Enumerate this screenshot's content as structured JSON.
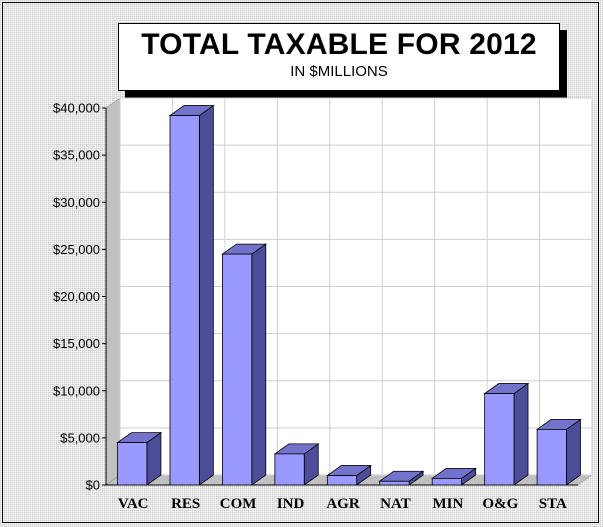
{
  "chart_data": {
    "type": "bar",
    "title": "TOTAL TAXABLE FOR 2012",
    "subtitle": "IN $MILLIONS",
    "categories": [
      "VAC",
      "RES",
      "COM",
      "IND",
      "AGR",
      "NAT",
      "MIN",
      "O&G",
      "STA"
    ],
    "values": [
      4500,
      39200,
      24500,
      3300,
      1000,
      400,
      700,
      9700,
      5900
    ],
    "ylim": [
      0,
      40000
    ],
    "yticks": [
      0,
      5000,
      10000,
      15000,
      20000,
      25000,
      30000,
      35000,
      40000
    ],
    "ytick_labels": [
      "$0",
      "$5,000",
      "$10,000",
      "$15,000",
      "$20,000",
      "$25,000",
      "$30,000",
      "$35,000",
      "$40,000"
    ],
    "xlabel": "",
    "ylabel": "",
    "grid": true,
    "colors": {
      "bar_front": "#9999ff",
      "bar_side": "#4d4d99",
      "bar_top": "#7373cc",
      "wall": "#c0c0c0"
    }
  }
}
